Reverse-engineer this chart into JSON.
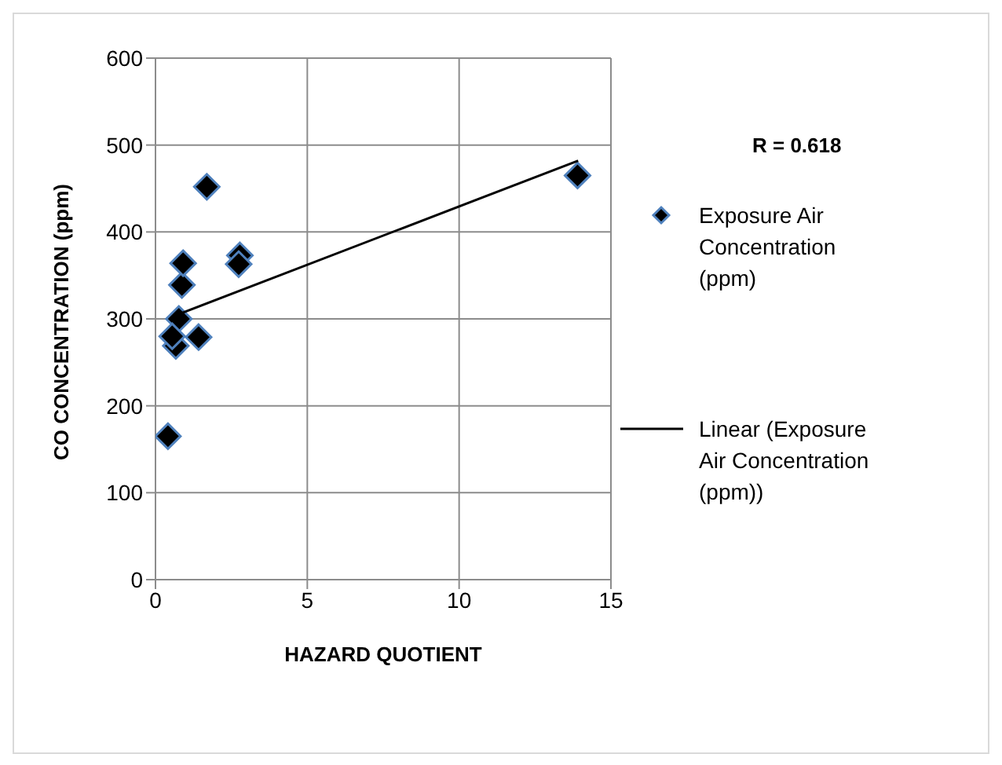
{
  "chart_data": {
    "type": "scatter",
    "xlabel": "HAZARD QUOTIENT",
    "ylabel": "CO CONCENTRATION (ppm)",
    "annotations": [
      "R = 0.618"
    ],
    "xlim": [
      0,
      15
    ],
    "xticks": [
      0,
      5,
      10,
      15
    ],
    "ylim": [
      0,
      600
    ],
    "yticks": [
      0,
      100,
      200,
      300,
      400,
      500,
      600
    ],
    "grid": true,
    "legend": "right",
    "series": [
      {
        "name": "Exposure Air Concentration (ppm)",
        "marker": "diamond",
        "color": "#000000",
        "x": [
          0.41,
          0.77,
          0.67,
          0.55,
          1.42,
          0.87,
          0.91,
          1.69,
          2.78,
          2.74,
          13.9
        ],
        "values": [
          165,
          300,
          269,
          280,
          279,
          339,
          364,
          452,
          373,
          363,
          465
        ]
      },
      {
        "name": "Linear (Exposure Air Concentration (ppm))",
        "type": "line",
        "color": "#000000",
        "x": [
          0.81,
          13.92
        ],
        "values": [
          306,
          482
        ]
      }
    ]
  }
}
